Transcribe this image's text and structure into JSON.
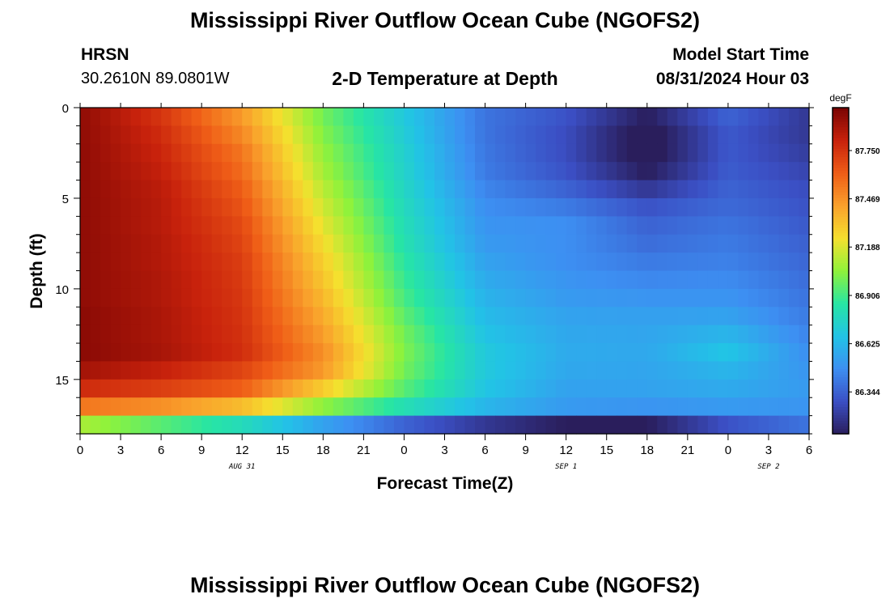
{
  "title": "Mississippi River Outflow Ocean Cube (NGOFS2)",
  "station": {
    "name": "HRSN",
    "coords": "30.2610N  89.0801W"
  },
  "model_start": {
    "label": "Model Start Time",
    "value": "08/31/2024 Hour 03"
  },
  "footer_title": "Mississippi River Outflow Ocean Cube (NGOFS2)",
  "chart_data": {
    "type": "heatmap",
    "title": "2-D Temperature at Depth",
    "xlabel": "Forecast Time(Z)",
    "ylabel": "Depth (ft)",
    "x_ticks": [
      "0",
      "3",
      "6",
      "9",
      "12",
      "15",
      "18",
      "21",
      "0",
      "3",
      "6",
      "9",
      "12",
      "15",
      "18",
      "21",
      "0",
      "3",
      "6"
    ],
    "x_range_hours": [
      0,
      54
    ],
    "date_labels": [
      {
        "text": "AUG 31",
        "at_hour": 12
      },
      {
        "text": "SEP 1",
        "at_hour": 36
      },
      {
        "text": "SEP 2",
        "at_hour": 51
      }
    ],
    "y_ticks": [
      "0",
      "5",
      "10",
      "15"
    ],
    "y_range": [
      0,
      18
    ],
    "y_reversed": true,
    "colorbar": {
      "unit": "degF",
      "ticks": [
        "87.750",
        "87.469",
        "87.188",
        "86.906",
        "86.625",
        "86.344"
      ],
      "min": 86.1,
      "max": 88.0,
      "colors": [
        "#2a1e5c",
        "#3b4fc4",
        "#3d8ff2",
        "#22c3e6",
        "#27e5a4",
        "#8ff23b",
        "#f5e02e",
        "#f9a12c",
        "#ef5d17",
        "#c8220c",
        "#7a0403"
      ]
    },
    "depths_ft": [
      0.5,
      1.5,
      2.5,
      3.5,
      4.5,
      5.5,
      6.5,
      7.5,
      8.5,
      9.5,
      10.5,
      11.5,
      12.5,
      13.5,
      14.5,
      15.5,
      16.5,
      17.5
    ],
    "times_hours": [
      0,
      6,
      12,
      18,
      24,
      30,
      36,
      42,
      48,
      54
    ],
    "temperature_degF": [
      [
        87.95,
        87.75,
        87.45,
        87.0,
        86.7,
        86.4,
        86.3,
        86.1,
        86.35,
        86.2
      ],
      [
        87.95,
        87.78,
        87.5,
        87.03,
        86.72,
        86.4,
        86.28,
        86.05,
        86.32,
        86.2
      ],
      [
        87.95,
        87.8,
        87.55,
        87.06,
        86.74,
        86.41,
        86.28,
        86.05,
        86.32,
        86.22
      ],
      [
        87.95,
        87.82,
        87.58,
        87.09,
        86.75,
        86.42,
        86.3,
        86.1,
        86.33,
        86.25
      ],
      [
        87.95,
        87.84,
        87.62,
        87.13,
        86.77,
        86.45,
        86.35,
        86.2,
        86.35,
        86.28
      ],
      [
        87.95,
        87.85,
        87.65,
        87.17,
        86.79,
        86.48,
        86.42,
        86.3,
        86.37,
        86.3
      ],
      [
        87.95,
        87.85,
        87.68,
        87.21,
        86.81,
        86.5,
        86.48,
        86.35,
        86.4,
        86.32
      ],
      [
        87.95,
        87.86,
        87.7,
        87.25,
        86.83,
        86.52,
        86.48,
        86.38,
        86.42,
        86.34
      ],
      [
        87.95,
        87.86,
        87.72,
        87.29,
        86.86,
        86.55,
        86.48,
        86.42,
        86.44,
        86.36
      ],
      [
        87.95,
        87.87,
        87.73,
        87.32,
        86.89,
        86.58,
        86.5,
        86.46,
        86.47,
        86.38
      ],
      [
        87.95,
        87.87,
        87.74,
        87.36,
        86.92,
        86.61,
        86.52,
        86.5,
        86.5,
        86.4
      ],
      [
        87.96,
        87.88,
        87.75,
        87.4,
        86.96,
        86.64,
        86.55,
        86.54,
        86.55,
        86.42
      ],
      [
        87.96,
        87.88,
        87.76,
        87.44,
        87.0,
        86.67,
        86.57,
        86.56,
        86.62,
        86.45
      ],
      [
        87.96,
        87.89,
        87.77,
        87.48,
        87.02,
        86.7,
        86.58,
        86.57,
        86.68,
        86.48
      ],
      [
        87.9,
        87.82,
        87.7,
        87.45,
        87.0,
        86.7,
        86.57,
        86.56,
        86.62,
        86.5
      ],
      [
        87.78,
        87.72,
        87.62,
        87.3,
        86.95,
        86.68,
        86.55,
        86.55,
        86.58,
        86.52
      ],
      [
        87.55,
        87.48,
        87.35,
        87.05,
        86.82,
        86.62,
        86.52,
        86.5,
        86.52,
        86.5
      ],
      [
        87.1,
        86.95,
        86.8,
        86.55,
        86.35,
        86.2,
        86.1,
        86.1,
        86.3,
        86.4
      ]
    ]
  }
}
